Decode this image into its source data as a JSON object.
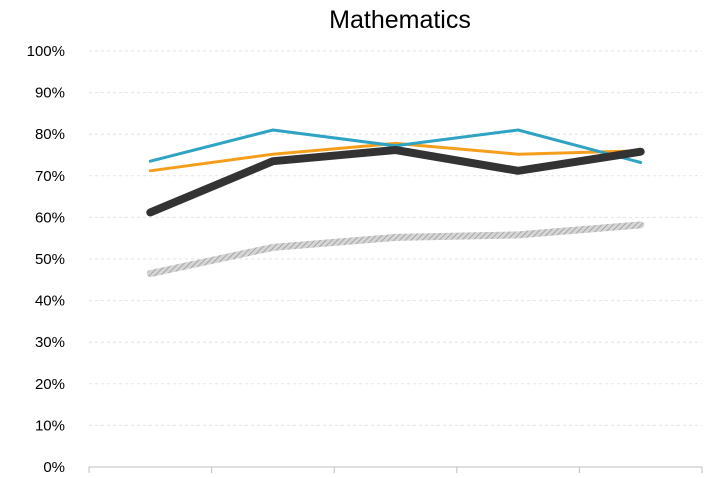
{
  "chart_data": {
    "type": "line",
    "title": "Mathematics",
    "xlabel": "",
    "ylabel": "",
    "categories": [
      "",
      "",
      "",
      "",
      ""
    ],
    "ylim": [
      0,
      100
    ],
    "yticks": [
      "0%",
      "10%",
      "20%",
      "30%",
      "40%",
      "50%",
      "60%",
      "70%",
      "80%",
      "90%",
      "100%"
    ],
    "grid": true,
    "legend": "none",
    "series": [
      {
        "values": [
          46.5,
          52.8,
          55.2,
          55.8,
          58.2
        ],
        "color": "#b5b5b5",
        "style": "hatched-thick"
      },
      {
        "values": [
          71.2,
          75.2,
          77.8,
          75.2,
          76.0
        ],
        "color": "#f59e1b",
        "style": "solid"
      },
      {
        "values": [
          73.5,
          81.0,
          77.2,
          81.0,
          73.2
        ],
        "color": "#2ea3c3",
        "style": "solid"
      },
      {
        "values": [
          61.2,
          73.5,
          76.2,
          71.2,
          75.8
        ],
        "color": "#333333",
        "style": "thick"
      }
    ]
  }
}
